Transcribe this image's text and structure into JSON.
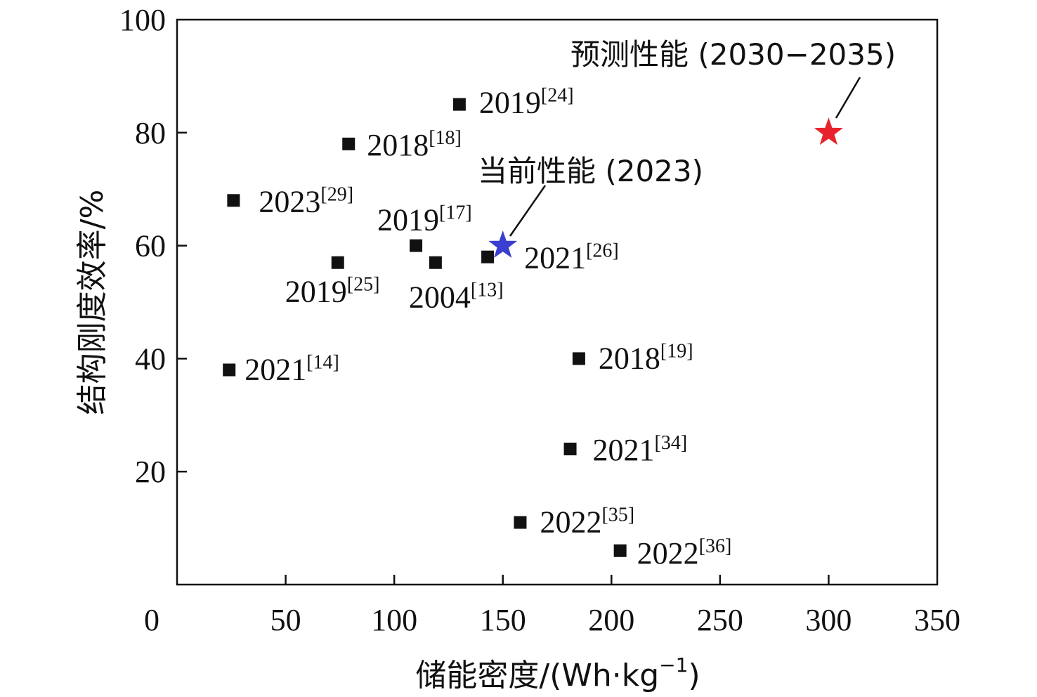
{
  "chart_data": {
    "type": "scatter",
    "xlabel": "储能密度/(Wh·kg",
    "xlabel_sup": "−1",
    "xlabel_end": ")",
    "ylabel": "结构刚度效率/%",
    "xlim": [
      0,
      350
    ],
    "ylim": [
      0,
      100
    ],
    "x_ticks": [
      "0",
      "50",
      "100",
      "150",
      "200",
      "250",
      "300",
      "350"
    ],
    "y_ticks": [
      "20",
      "40",
      "60",
      "80",
      "100"
    ],
    "marker_color": "#111111",
    "points": [
      {
        "x": 130,
        "y": 85,
        "year": "2019",
        "ref": "[24]"
      },
      {
        "x": 79,
        "y": 78,
        "year": "2018",
        "ref": "[18]"
      },
      {
        "x": 26,
        "y": 68,
        "year": "2023",
        "ref": "[29]"
      },
      {
        "x": 110,
        "y": 60,
        "year": "2019",
        "ref": "[17]"
      },
      {
        "x": 74,
        "y": 57,
        "year": "2019",
        "ref": "[25]"
      },
      {
        "x": 119,
        "y": 57,
        "year": "2004",
        "ref": "[13]"
      },
      {
        "x": 143,
        "y": 58,
        "year": "2021",
        "ref": "[26]"
      },
      {
        "x": 24,
        "y": 38,
        "year": "2021",
        "ref": "[14]"
      },
      {
        "x": 185,
        "y": 40,
        "year": "2018",
        "ref": "[19]"
      },
      {
        "x": 181,
        "y": 24,
        "year": "2021",
        "ref": "[34]"
      },
      {
        "x": 158,
        "y": 11,
        "year": "2022",
        "ref": "[35]"
      },
      {
        "x": 204,
        "y": 6,
        "year": "2022",
        "ref": "[36]"
      }
    ],
    "highlights": [
      {
        "x": 150,
        "y": 60,
        "label": "当前性能 (2023)",
        "color": "#3b3fcf"
      },
      {
        "x": 300,
        "y": 80,
        "label": "预测性能 (2030−2035)",
        "color": "#e8232d"
      }
    ]
  }
}
